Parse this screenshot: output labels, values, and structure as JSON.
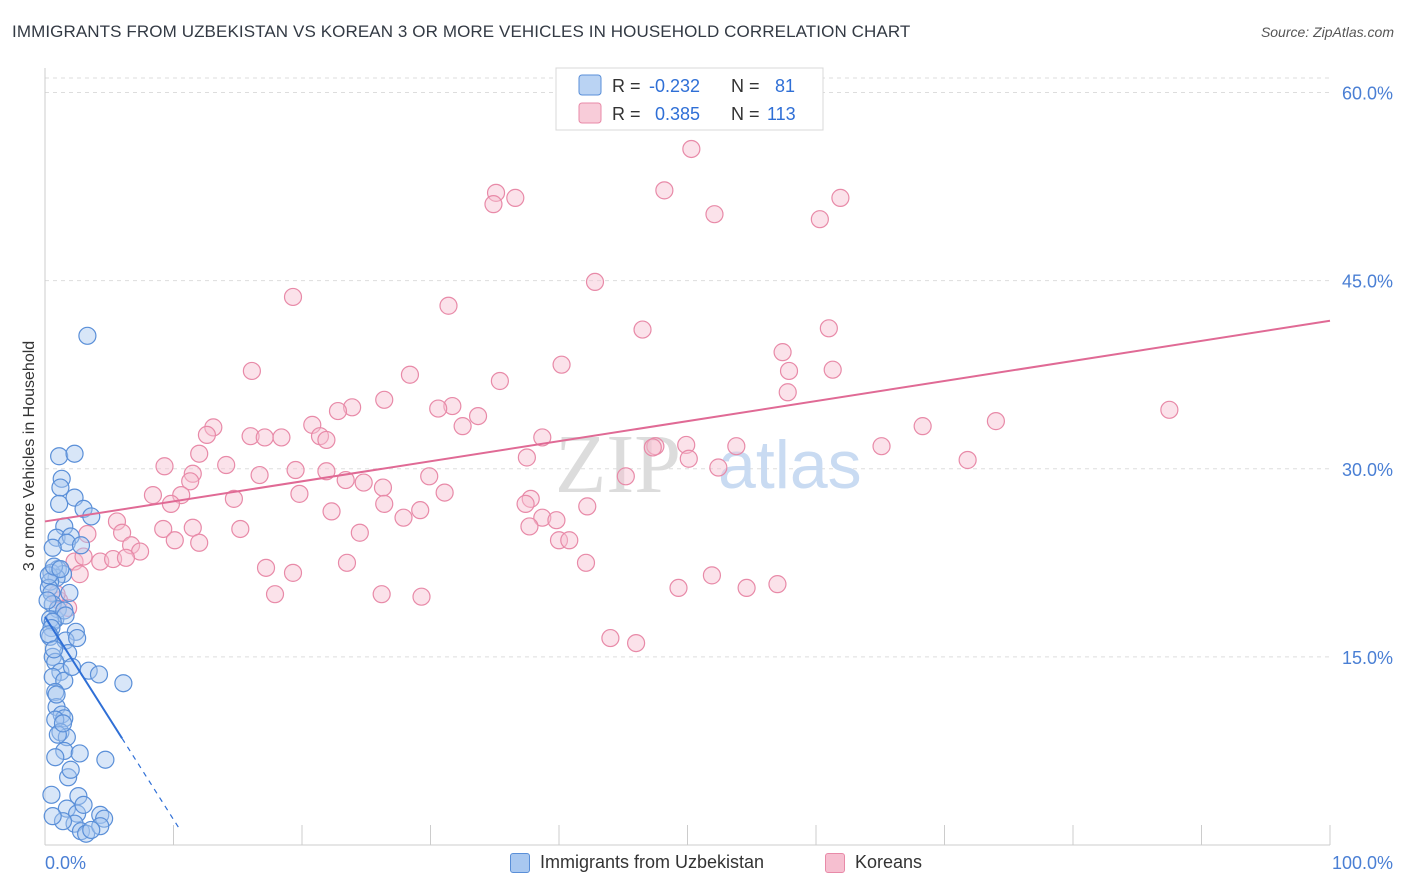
{
  "title": "IMMIGRANTS FROM UZBEKISTAN VS KOREAN 3 OR MORE VEHICLES IN HOUSEHOLD CORRELATION CHART",
  "source": "Source: ZipAtlas.com",
  "watermark": {
    "zip": "ZIP",
    "atlas": "atlas"
  },
  "colors": {
    "blue_fill": "#a9c8f0",
    "blue_stroke": "#5a8fd8",
    "blue_line": "#2f6fd6",
    "pink_fill": "#f6bfd0",
    "pink_stroke": "#e88aa8",
    "pink_line": "#e06a95",
    "tick_label": "#4a7fd4",
    "grid": "#dddddd"
  },
  "legend_top": [
    {
      "r_label": "R = ",
      "r_value": "-0.232",
      "n_label": "N = ",
      "n_value": "81",
      "color": "blue"
    },
    {
      "r_label": "R = ",
      "r_value": "0.385",
      "n_label": "N = ",
      "n_value": "113",
      "color": "pink"
    }
  ],
  "legend_bottom": [
    {
      "label": "Immigrants from Uzbekistan",
      "color": "blue"
    },
    {
      "label": "Koreans",
      "color": "pink"
    }
  ],
  "chart_data": {
    "type": "scatter",
    "ylabel": "3 or more Vehicles in Household",
    "x_tick_labels": [
      "0.0%",
      "100.0%"
    ],
    "y_tick_labels": [
      "15.0%",
      "30.0%",
      "45.0%",
      "60.0%"
    ],
    "xlim": [
      0,
      100
    ],
    "ylim": [
      0,
      61
    ],
    "grid": true,
    "series": [
      {
        "name": "Immigrants from Uzbekistan",
        "color": "blue",
        "trend": {
          "x0": 0,
          "y0": 18.2,
          "x1": 6.0,
          "y1": 8.5,
          "dash_to_x": 10.5
        },
        "points": [
          [
            3.3,
            40.6
          ],
          [
            0.8,
            18.0
          ],
          [
            1.1,
            31.0
          ],
          [
            2.3,
            31.2
          ],
          [
            1.3,
            29.2
          ],
          [
            1.2,
            28.5
          ],
          [
            2.3,
            27.7
          ],
          [
            3.0,
            26.8
          ],
          [
            1.1,
            27.2
          ],
          [
            3.6,
            26.2
          ],
          [
            1.5,
            25.4
          ],
          [
            0.9,
            24.5
          ],
          [
            2.0,
            24.6
          ],
          [
            1.7,
            24.1
          ],
          [
            2.8,
            23.9
          ],
          [
            0.6,
            23.7
          ],
          [
            1.0,
            22.0
          ],
          [
            1.4,
            21.6
          ],
          [
            0.5,
            21.7
          ],
          [
            0.9,
            21.3
          ],
          [
            0.4,
            21.0
          ],
          [
            0.3,
            20.5
          ],
          [
            0.5,
            20.1
          ],
          [
            1.9,
            20.1
          ],
          [
            0.6,
            19.2
          ],
          [
            1.0,
            18.8
          ],
          [
            1.5,
            18.7
          ],
          [
            1.6,
            18.3
          ],
          [
            0.4,
            18.0
          ],
          [
            0.6,
            17.8
          ],
          [
            0.5,
            17.3
          ],
          [
            2.4,
            17.0
          ],
          [
            0.4,
            16.6
          ],
          [
            1.6,
            16.3
          ],
          [
            2.5,
            16.5
          ],
          [
            1.8,
            15.3
          ],
          [
            0.6,
            15.0
          ],
          [
            0.8,
            14.6
          ],
          [
            1.2,
            13.8
          ],
          [
            3.4,
            13.9
          ],
          [
            4.2,
            13.6
          ],
          [
            0.6,
            13.4
          ],
          [
            1.5,
            13.1
          ],
          [
            6.1,
            12.9
          ],
          [
            0.8,
            12.2
          ],
          [
            0.9,
            11.0
          ],
          [
            1.3,
            10.4
          ],
          [
            1.5,
            10.1
          ],
          [
            0.8,
            10.0
          ],
          [
            1.2,
            9.0
          ],
          [
            1.7,
            8.6
          ],
          [
            1.0,
            8.8
          ],
          [
            1.5,
            7.5
          ],
          [
            2.7,
            7.3
          ],
          [
            0.8,
            7.0
          ],
          [
            4.7,
            6.8
          ],
          [
            1.8,
            5.4
          ],
          [
            0.5,
            4.0
          ],
          [
            2.6,
            3.9
          ],
          [
            1.7,
            2.9
          ],
          [
            2.5,
            2.5
          ],
          [
            4.3,
            2.4
          ],
          [
            4.6,
            2.1
          ],
          [
            2.3,
            1.7
          ],
          [
            1.4,
            1.9
          ],
          [
            2.8,
            1.1
          ],
          [
            3.2,
            0.9
          ],
          [
            4.3,
            1.5
          ],
          [
            3.6,
            1.2
          ],
          [
            0.3,
            21.5
          ],
          [
            0.7,
            22.2
          ],
          [
            0.2,
            19.5
          ],
          [
            1.2,
            22.0
          ],
          [
            0.3,
            16.8
          ],
          [
            0.7,
            15.6
          ],
          [
            2.1,
            14.2
          ],
          [
            0.9,
            12.0
          ],
          [
            1.4,
            9.7
          ],
          [
            2.0,
            6.0
          ],
          [
            3.0,
            3.2
          ],
          [
            0.6,
            2.3
          ]
        ]
      },
      {
        "name": "Koreans",
        "color": "pink",
        "trend": {
          "x0": 0,
          "y0": 25.8,
          "x1": 100,
          "y1": 41.8
        },
        "points": [
          [
            50.3,
            55.5
          ],
          [
            48.2,
            52.2
          ],
          [
            35.1,
            52.0
          ],
          [
            36.6,
            51.6
          ],
          [
            34.9,
            51.1
          ],
          [
            61.9,
            51.6
          ],
          [
            52.1,
            50.3
          ],
          [
            60.3,
            49.9
          ],
          [
            42.8,
            44.9
          ],
          [
            19.3,
            43.7
          ],
          [
            31.4,
            43.0
          ],
          [
            46.5,
            41.1
          ],
          [
            61.0,
            41.2
          ],
          [
            57.4,
            39.3
          ],
          [
            40.2,
            38.3
          ],
          [
            61.3,
            37.9
          ],
          [
            57.9,
            37.8
          ],
          [
            16.1,
            37.8
          ],
          [
            28.4,
            37.5
          ],
          [
            35.4,
            37.0
          ],
          [
            57.8,
            36.1
          ],
          [
            26.4,
            35.5
          ],
          [
            23.9,
            34.9
          ],
          [
            31.7,
            35.0
          ],
          [
            30.6,
            34.8
          ],
          [
            22.8,
            34.6
          ],
          [
            33.7,
            34.2
          ],
          [
            87.5,
            34.7
          ],
          [
            20.8,
            33.5
          ],
          [
            32.5,
            33.4
          ],
          [
            68.3,
            33.4
          ],
          [
            74.0,
            33.8
          ],
          [
            13.1,
            33.3
          ],
          [
            12.6,
            32.7
          ],
          [
            16.0,
            32.6
          ],
          [
            17.1,
            32.5
          ],
          [
            18.4,
            32.5
          ],
          [
            21.4,
            32.6
          ],
          [
            21.9,
            32.3
          ],
          [
            38.7,
            32.5
          ],
          [
            49.9,
            31.9
          ],
          [
            47.5,
            31.8
          ],
          [
            53.8,
            31.8
          ],
          [
            65.1,
            31.8
          ],
          [
            47.3,
            31.7
          ],
          [
            12.0,
            31.2
          ],
          [
            37.5,
            30.9
          ],
          [
            50.1,
            30.8
          ],
          [
            71.8,
            30.7
          ],
          [
            9.3,
            30.2
          ],
          [
            14.1,
            30.3
          ],
          [
            19.5,
            29.9
          ],
          [
            16.7,
            29.5
          ],
          [
            11.5,
            29.6
          ],
          [
            52.4,
            30.1
          ],
          [
            21.9,
            29.8
          ],
          [
            29.9,
            29.4
          ],
          [
            45.2,
            29.4
          ],
          [
            23.4,
            29.1
          ],
          [
            11.3,
            29.0
          ],
          [
            24.8,
            28.9
          ],
          [
            26.3,
            28.5
          ],
          [
            8.4,
            27.9
          ],
          [
            10.6,
            27.9
          ],
          [
            19.8,
            28.0
          ],
          [
            31.1,
            28.1
          ],
          [
            14.7,
            27.6
          ],
          [
            37.8,
            27.6
          ],
          [
            9.8,
            27.2
          ],
          [
            26.4,
            27.2
          ],
          [
            37.4,
            27.2
          ],
          [
            42.2,
            27.0
          ],
          [
            29.2,
            26.7
          ],
          [
            22.3,
            26.6
          ],
          [
            27.9,
            26.1
          ],
          [
            38.7,
            26.1
          ],
          [
            39.8,
            25.9
          ],
          [
            5.6,
            25.8
          ],
          [
            3.3,
            24.8
          ],
          [
            6.0,
            24.9
          ],
          [
            9.2,
            25.2
          ],
          [
            11.5,
            25.3
          ],
          [
            15.2,
            25.2
          ],
          [
            24.5,
            24.9
          ],
          [
            37.7,
            25.4
          ],
          [
            40.0,
            24.3
          ],
          [
            40.8,
            24.3
          ],
          [
            10.1,
            24.3
          ],
          [
            6.7,
            23.9
          ],
          [
            7.4,
            23.4
          ],
          [
            2.3,
            22.6
          ],
          [
            3.0,
            23.0
          ],
          [
            4.3,
            22.6
          ],
          [
            5.3,
            22.8
          ],
          [
            6.3,
            22.9
          ],
          [
            12.0,
            24.1
          ],
          [
            17.2,
            22.1
          ],
          [
            23.5,
            22.5
          ],
          [
            42.1,
            22.5
          ],
          [
            19.3,
            21.7
          ],
          [
            2.7,
            21.6
          ],
          [
            49.3,
            20.5
          ],
          [
            54.6,
            20.5
          ],
          [
            57.0,
            20.8
          ],
          [
            51.9,
            21.5
          ],
          [
            26.2,
            20.0
          ],
          [
            29.3,
            19.8
          ],
          [
            17.9,
            20.0
          ],
          [
            44.0,
            16.5
          ],
          [
            46.0,
            16.1
          ],
          [
            1.1,
            19.5
          ],
          [
            1.8,
            18.9
          ],
          [
            0.9,
            20.0
          ]
        ]
      }
    ]
  }
}
